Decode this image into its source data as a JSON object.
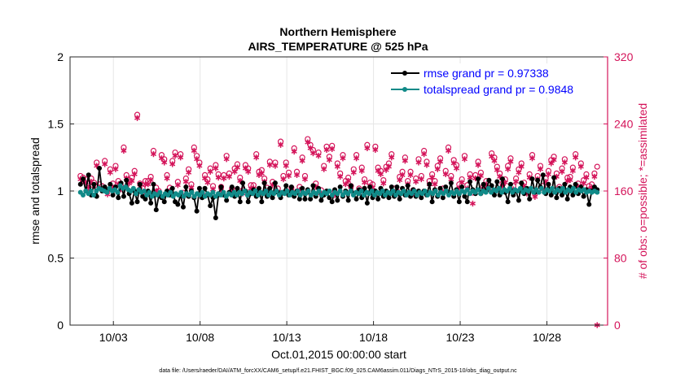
{
  "chart_data": {
    "type": "line",
    "title": "Northern Hemisphere",
    "subtitle": "AIRS_TEMPERATURE @ 525 hPa",
    "xlabel": "Oct.01,2015 00:00:00 start",
    "ylabel_left": "rmse and totalspread",
    "ylabel_right": "# of obs: o=possible; *=assimilated",
    "footnote": "data file: /Users/raeder/DAI/ATM_forcXX/CAM6_setup/f.e21.FHIST_BGC.f09_025.CAM6assim.011/Diags_NTrS_2015-10/obs_diag_output.nc",
    "xlim": [
      0.5,
      31.5
    ],
    "ylim_left": [
      0,
      2
    ],
    "ylim_right": [
      0,
      320
    ],
    "x_ticks": [
      {
        "x": 3,
        "label": "10/03"
      },
      {
        "x": 8,
        "label": "10/08"
      },
      {
        "x": 13,
        "label": "10/13"
      },
      {
        "x": 18,
        "label": "10/18"
      },
      {
        "x": 23,
        "label": "10/23"
      },
      {
        "x": 28,
        "label": "10/28"
      }
    ],
    "y_ticks_left": [
      0,
      0.5,
      1,
      1.5,
      2
    ],
    "y_ticks_right": [
      0,
      80,
      160,
      240,
      320
    ],
    "legend_position": "top-right",
    "colors": {
      "rmse": "#000000",
      "totalspread": "#108a88",
      "obs": "#d4145a",
      "legend_text": "#0000ff",
      "grid": "#e6e6e6"
    },
    "series": [
      {
        "name": "rmse grand pr = 0.97338",
        "axis": "left",
        "values": [
          1.05,
          1.09,
          1.0,
          1.12,
          0.97,
          1.05,
          0.96,
          1.17,
          1.0,
          1.03,
          1.01,
          1.05,
          0.97,
          1.03,
          0.95,
          1.06,
          0.96,
          1.08,
          0.98,
          0.91,
          1.0,
          0.92,
          1.05,
          0.96,
          0.94,
          1.0,
          0.91,
          1.05,
          0.86,
          0.97,
          0.95,
          0.92,
          1.0,
          0.97,
          1.02,
          0.92,
          0.9,
          0.97,
          0.88,
          1.03,
          0.96,
          1.0,
          0.95,
          0.85,
          1.02,
          0.95,
          1.02,
          0.97,
          0.89,
          0.95,
          0.8,
          0.97,
          1.03,
          0.97,
          0.93,
          0.99,
          1.03,
          0.96,
          1.02,
          0.92,
          1.06,
          1.0,
          0.92,
          0.98,
          1.01,
          0.96,
          1.02,
          0.92,
          1.06,
          0.96,
          1.02,
          0.95,
          1.06,
          0.99,
          0.95,
          0.99,
          1.04,
          0.97,
          1.03,
          0.96,
          1.0,
          0.94,
          1.02,
          0.94,
          1.01,
          0.94,
          1.04,
          0.96,
          1.02,
          0.93,
          0.97,
          1.0,
          0.95,
          0.92,
          1.01,
          0.93,
          1.03,
          0.96,
          1.0,
          0.93,
          1.04,
          0.98,
          0.94,
          1.01,
          0.95,
          1.02,
          0.91,
          1.03,
          0.95,
          1.0,
          0.94,
          1.02,
          0.96,
          1.0,
          0.95,
          1.03,
          0.96,
          1.03,
          0.94,
          1.02,
          0.97,
          1.04,
          0.96,
          1.01,
          0.96,
          1.0,
          0.95,
          1.0,
          0.97,
          1.05,
          0.92,
          1.01,
          0.96,
          1.02,
          0.95,
          1.03,
          0.99,
          1.06,
          0.96,
          1.01,
          0.92,
          1.03,
          0.96,
          0.92,
          1.07,
          1.01,
          0.98,
          1.09,
          0.98,
          1.05,
          1.0,
          1.08,
          1.04,
          0.97,
          1.07,
          0.97,
          1.09,
          0.99,
          0.92,
          1.05,
          0.97,
          1.0,
          0.93,
          1.06,
          0.98,
          1.02,
          0.94,
          1.09,
          0.99,
          1.08,
          1.03,
          1.12,
          0.98,
          1.05,
          0.97,
          1.1,
          0.95,
          1.02,
          0.97,
          1.05,
          0.94,
          1.03,
          0.97,
          1.05,
          0.98,
          1.03,
          0.96,
          1.01,
          0.9,
          1.0,
          1.03,
          1.01
        ]
      },
      {
        "name": "totalspread grand pr = 0.9848",
        "axis": "left",
        "values": [
          0.99,
          0.97,
          1.0,
          0.98,
          1.0,
          0.97,
          1.0,
          1.02,
          1.01,
          1.0,
          0.99,
          1.02,
          1.0,
          1.01,
          0.99,
          1.04,
          1.02,
          1.03,
          1.01,
          1.0,
          1.02,
          0.98,
          1.01,
          0.99,
          1.0,
          0.97,
          0.99,
          0.96,
          0.98,
          0.97,
          0.99,
          0.96,
          0.98,
          0.97,
          0.99,
          0.96,
          0.98,
          0.97,
          0.99,
          0.96,
          0.98,
          0.97,
          0.99,
          0.96,
          0.98,
          0.97,
          0.99,
          0.96,
          0.98,
          0.97,
          0.99,
          0.96,
          0.98,
          0.97,
          0.99,
          0.96,
          0.98,
          0.97,
          0.99,
          0.97,
          0.99,
          0.98,
          1.0,
          0.97,
          0.99,
          0.98,
          1.0,
          0.97,
          0.99,
          0.98,
          1.0,
          0.97,
          0.99,
          0.98,
          1.0,
          0.97,
          0.99,
          0.98,
          1.0,
          0.97,
          0.99,
          0.98,
          1.0,
          0.97,
          0.99,
          0.98,
          1.0,
          0.97,
          0.99,
          0.98,
          1.0,
          0.97,
          0.99,
          0.98,
          1.0,
          0.97,
          0.99,
          0.98,
          1.0,
          0.97,
          0.99,
          0.98,
          1.0,
          0.97,
          0.99,
          0.98,
          1.0,
          0.97,
          0.99,
          0.98,
          1.0,
          0.97,
          0.99,
          0.98,
          1.0,
          0.97,
          0.99,
          0.98,
          1.0,
          0.97,
          0.99,
          0.98,
          1.0,
          0.97,
          0.99,
          0.98,
          1.0,
          0.97,
          0.99,
          0.98,
          1.0,
          0.97,
          0.99,
          0.98,
          1.0,
          0.97,
          0.99,
          0.98,
          1.0,
          0.97,
          0.99,
          0.98,
          1.0,
          0.98,
          1.0,
          0.99,
          1.01,
          0.98,
          1.0,
          0.99,
          1.01,
          0.98,
          1.0,
          0.99,
          1.02,
          0.99,
          1.01,
          1.0,
          1.02,
          0.99,
          1.01,
          1.0,
          1.02,
          0.99,
          1.01,
          1.0,
          1.02,
          0.99,
          1.01,
          1.0,
          1.02,
          0.99,
          1.01,
          0.99,
          1.02,
          0.99,
          1.01,
          1.0,
          1.02,
          0.99,
          1.01,
          1.0,
          1.02,
          0.99,
          1.01,
          1.0,
          1.02,
          0.99,
          1.01,
          1.0,
          1.01,
          0.99,
          1.0,
          0.99,
          1.0,
          0.99
        ]
      },
      {
        "name": "possible observations",
        "axis": "right",
        "marker": "o",
        "values": [
          178,
          176,
          174,
          169,
          175,
          170,
          194,
          168,
          166,
          196,
          161,
          186,
          169,
          190,
          172,
          166,
          212,
          179,
          173,
          176,
          184,
          251,
          169,
          163,
          172,
          172,
          177,
          208,
          164,
          160,
          203,
          198,
          179,
          164,
          196,
          206,
          171,
          204,
          158,
          175,
          186,
          168,
          212,
          202,
          194,
          157,
          179,
          174,
          187,
          166,
          191,
          180,
          165,
          179,
          202,
          181,
          163,
          187,
          192,
          176,
          161,
          191,
          187,
          167,
          167,
          204,
          183,
          185,
          175,
          164,
          195,
          171,
          194,
          163,
          219,
          178,
          194,
          182,
          164,
          211,
          183,
          165,
          200,
          178,
          222,
          215,
          209,
          169,
          206,
          161,
          190,
          213,
          201,
          214,
          159,
          193,
          181,
          203,
          172,
          176,
          166,
          186,
          203,
          163,
          188,
          174,
          215,
          170,
          168,
          213,
          188,
          184,
          173,
          189,
          193,
          204,
          163,
          160,
          177,
          183,
          200,
          172,
          183,
          161,
          175,
          198,
          178,
          208,
          195,
          172,
          180,
          172,
          190,
          199,
          163,
          184,
          212,
          178,
          197,
          191,
          168,
          174,
          202,
          167,
          180,
          158,
          179,
          195,
          182,
          166,
          172,
          167,
          205,
          200,
          189,
          181,
          169,
          174,
          190,
          199,
          166,
          175,
          186,
          193,
          170,
          161,
          180,
          203,
          157,
          178,
          190,
          166,
          175,
          184,
          197,
          201,
          181,
          165,
          187,
          198,
          176,
          177,
          188,
          204,
          169,
          193,
          173,
          180,
          166,
          168,
          181,
          189
        ]
      },
      {
        "name": "assimilated observations",
        "axis": "right",
        "marker": "*",
        "values": [
          174,
          172,
          170,
          164,
          171,
          166,
          190,
          164,
          162,
          192,
          156,
          182,
          164,
          186,
          168,
          162,
          208,
          175,
          169,
          172,
          180,
          247,
          165,
          158,
          168,
          168,
          173,
          204,
          160,
          156,
          199,
          194,
          175,
          160,
          192,
          202,
          167,
          200,
          154,
          171,
          182,
          164,
          208,
          198,
          190,
          153,
          175,
          170,
          183,
          162,
          187,
          176,
          161,
          175,
          198,
          177,
          159,
          183,
          188,
          172,
          157,
          187,
          183,
          163,
          163,
          200,
          179,
          181,
          171,
          160,
          191,
          167,
          190,
          159,
          215,
          174,
          190,
          178,
          160,
          207,
          179,
          161,
          196,
          174,
          218,
          211,
          205,
          165,
          202,
          157,
          186,
          209,
          197,
          210,
          155,
          189,
          177,
          199,
          168,
          172,
          162,
          182,
          199,
          159,
          184,
          170,
          211,
          166,
          164,
          209,
          184,
          180,
          169,
          185,
          189,
          200,
          159,
          156,
          173,
          179,
          196,
          168,
          179,
          157,
          171,
          194,
          174,
          204,
          191,
          168,
          176,
          168,
          186,
          195,
          159,
          180,
          208,
          174,
          193,
          187,
          164,
          170,
          198,
          163,
          176,
          145,
          175,
          191,
          178,
          162,
          168,
          163,
          201,
          196,
          185,
          177,
          165,
          170,
          186,
          195,
          162,
          171,
          182,
          189,
          166,
          157,
          176,
          199,
          153,
          174,
          186,
          162,
          171,
          180,
          193,
          197,
          177,
          161,
          183,
          194,
          172,
          173,
          184,
          200,
          165,
          189,
          169,
          176,
          162,
          164,
          177,
          0
        ]
      }
    ]
  }
}
